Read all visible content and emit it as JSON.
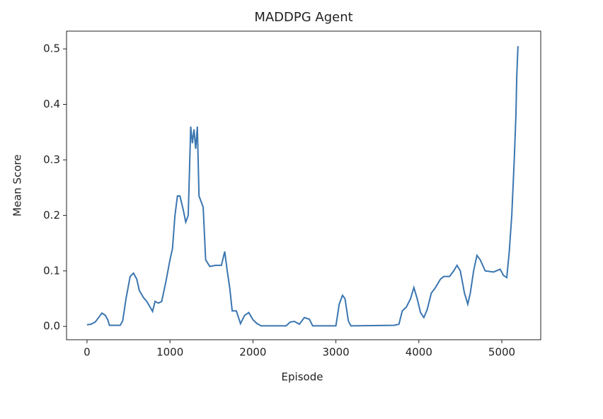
{
  "chart_data": {
    "type": "line",
    "title": "MADDPG Agent",
    "xlabel": "Episode",
    "ylabel": "Mean Score",
    "xlim": [
      -247,
      5469
    ],
    "ylim": [
      -0.024,
      0.532
    ],
    "xticks": [
      0,
      1000,
      2000,
      3000,
      4000,
      5000
    ],
    "yticks": [
      {
        "value": 0,
        "label": "0.0"
      },
      0.1,
      0.2,
      0.3,
      0.4,
      0.5
    ],
    "grid": false,
    "series": [
      {
        "name": "Mean Score",
        "color": "#3a76b0",
        "x": [
          0,
          50,
          100,
          150,
          180,
          220,
          250,
          270,
          400,
          430,
          470,
          520,
          560,
          600,
          630,
          680,
          720,
          760,
          790,
          820,
          860,
          900,
          950,
          1000,
          1030,
          1060,
          1090,
          1120,
          1160,
          1190,
          1220,
          1250,
          1270,
          1290,
          1310,
          1330,
          1350,
          1400,
          1430,
          1480,
          1550,
          1620,
          1660,
          1690,
          1720,
          1750,
          1800,
          1850,
          1900,
          1950,
          2000,
          2050,
          2100,
          2400,
          2450,
          2500,
          2560,
          2620,
          2680,
          2720,
          3000,
          3040,
          3080,
          3110,
          3150,
          3180,
          3700,
          3760,
          3800,
          3850,
          3900,
          3940,
          3980,
          4020,
          4060,
          4100,
          4150,
          4200,
          4260,
          4300,
          4370,
          4420,
          4460,
          4500,
          4550,
          4590,
          4620,
          4660,
          4700,
          4740,
          4800,
          4900,
          4980,
          5020,
          5060,
          5090,
          5120,
          5150,
          5170,
          5180,
          5195
        ],
        "values": [
          0.003,
          0.004,
          0.008,
          0.018,
          0.024,
          0.02,
          0.012,
          0.002,
          0.002,
          0.01,
          0.05,
          0.09,
          0.096,
          0.085,
          0.065,
          0.052,
          0.045,
          0.035,
          0.027,
          0.045,
          0.042,
          0.045,
          0.08,
          0.12,
          0.14,
          0.2,
          0.235,
          0.235,
          0.21,
          0.188,
          0.2,
          0.36,
          0.33,
          0.355,
          0.32,
          0.36,
          0.235,
          0.215,
          0.12,
          0.108,
          0.11,
          0.11,
          0.135,
          0.1,
          0.07,
          0.028,
          0.028,
          0.005,
          0.02,
          0.025,
          0.012,
          0.005,
          0.001,
          0.001,
          0.008,
          0.009,
          0.004,
          0.016,
          0.013,
          0.001,
          0.001,
          0.04,
          0.056,
          0.05,
          0.01,
          0.001,
          0.002,
          0.004,
          0.028,
          0.035,
          0.05,
          0.07,
          0.05,
          0.025,
          0.016,
          0.03,
          0.06,
          0.07,
          0.085,
          0.09,
          0.09,
          0.1,
          0.11,
          0.1,
          0.06,
          0.04,
          0.06,
          0.1,
          0.128,
          0.12,
          0.1,
          0.098,
          0.103,
          0.092,
          0.088,
          0.135,
          0.2,
          0.3,
          0.38,
          0.45,
          0.505
        ]
      }
    ]
  }
}
